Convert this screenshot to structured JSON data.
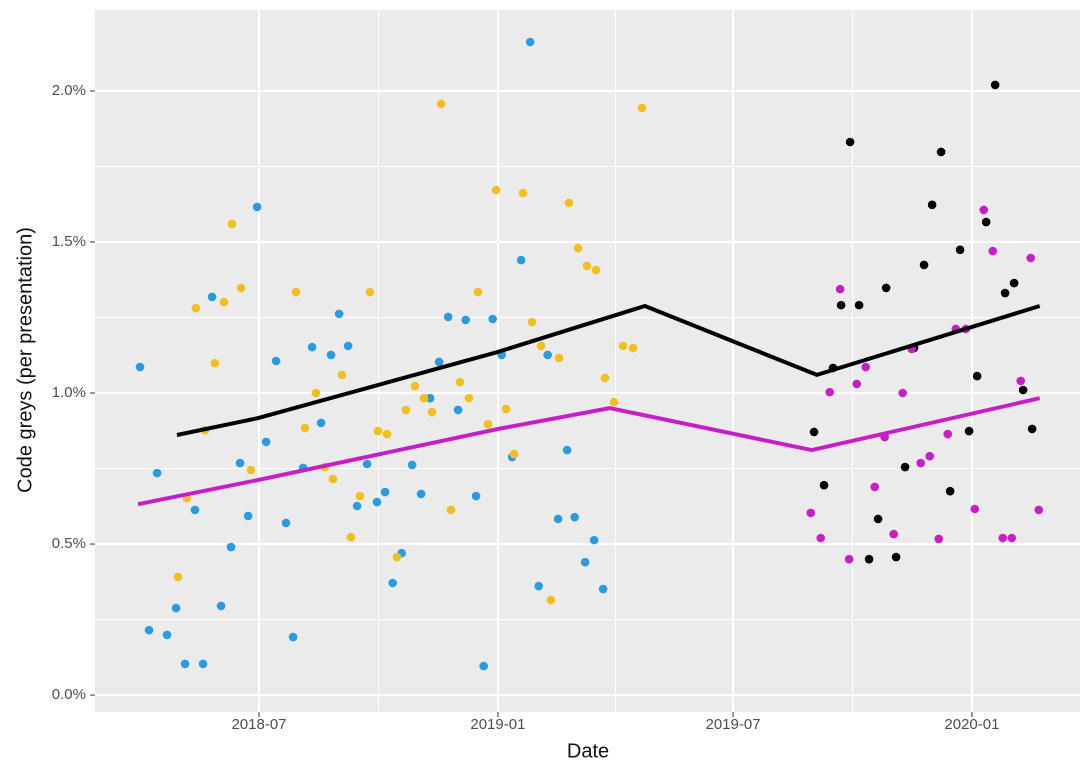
{
  "chart_data": {
    "type": "scatter",
    "xlabel": "Date",
    "ylabel": "Code greys (per presentation)",
    "xlim": [
      2018.15,
      2020.228
    ],
    "ylim": [
      -0.056,
      2.268
    ],
    "xticks": [
      {
        "value": 2018.496,
        "label": "2018-07"
      },
      {
        "value": 2019.0,
        "label": "2019-01"
      },
      {
        "value": 2019.496,
        "label": "2019-07"
      },
      {
        "value": 2020.0,
        "label": "2020-01"
      }
    ],
    "yticks": [
      {
        "value": 0,
        "label": "0.0%"
      },
      {
        "value": 0.5,
        "label": "0.5%"
      },
      {
        "value": 1,
        "label": "1.0%"
      },
      {
        "value": 1.5,
        "label": "1.5%"
      },
      {
        "value": 2,
        "label": "2.0%"
      }
    ],
    "grid": true,
    "series": [
      {
        "type": "scatter",
        "color": "#2b9be0",
        "x": [
          2018.245,
          2018.264,
          2018.281,
          2018.302,
          2018.321,
          2018.34,
          2018.361,
          2018.378,
          2018.397,
          2018.416,
          2018.437,
          2018.456,
          2018.473,
          2018.492,
          2018.511,
          2018.532,
          2018.553,
          2018.568,
          2018.589,
          2018.608,
          2018.627,
          2018.648,
          2018.665,
          2018.684,
          2018.703,
          2018.724,
          2018.745,
          2018.762,
          2018.778,
          2018.797,
          2018.819,
          2018.838,
          2018.857,
          2018.876,
          2018.895,
          2018.916,
          2018.932,
          2018.954,
          2018.97,
          2018.989,
          2019.008,
          2019.03,
          2019.049,
          2019.068,
          2019.086,
          2019.105,
          2019.127,
          2019.146,
          2019.162,
          2019.184,
          2019.203,
          2019.222
        ],
        "values": [
          1.086,
          0.215,
          0.735,
          0.199,
          0.288,
          0.103,
          0.613,
          0.103,
          1.318,
          0.295,
          0.49,
          0.768,
          0.593,
          1.616,
          0.838,
          1.106,
          0.57,
          0.192,
          0.752,
          1.152,
          0.901,
          1.126,
          1.262,
          1.156,
          0.626,
          0.765,
          0.639,
          0.672,
          0.371,
          0.47,
          0.762,
          0.666,
          0.983,
          1.103,
          1.252,
          0.944,
          1.242,
          0.659,
          0.096,
          1.245,
          1.126,
          0.788,
          1.44,
          2.162,
          0.361,
          1.126,
          0.583,
          0.811,
          0.589,
          0.44,
          0.513,
          0.351
        ]
      },
      {
        "type": "scatter",
        "color": "#f2c01e",
        "x": [
          2018.325,
          2018.344,
          2018.363,
          2018.382,
          2018.403,
          2018.422,
          2018.439,
          2018.458,
          2018.479,
          2018.574,
          2018.593,
          2018.616,
          2018.635,
          2018.652,
          2018.671,
          2018.69,
          2018.709,
          2018.73,
          2018.747,
          2018.766,
          2018.787,
          2018.806,
          2018.825,
          2018.844,
          2018.861,
          2018.88,
          2018.901,
          2018.92,
          2018.939,
          2018.958,
          2018.979,
          2018.996,
          2019.017,
          2019.034,
          2019.053,
          2019.072,
          2019.091,
          2019.112,
          2019.129,
          2019.15,
          2019.169,
          2019.188,
          2019.207,
          2019.226,
          2019.245,
          2019.264,
          2019.285,
          2019.304
        ],
        "values": [
          0.391,
          0.652,
          1.281,
          0.877,
          1.099,
          1.301,
          1.56,
          1.348,
          0.745,
          1.334,
          0.884,
          1.0,
          0.755,
          0.715,
          1.06,
          0.523,
          0.659,
          1.334,
          0.874,
          0.864,
          0.457,
          0.944,
          1.023,
          0.983,
          0.937,
          1.957,
          0.613,
          1.036,
          0.983,
          1.334,
          0.897,
          1.672,
          0.947,
          0.798,
          1.662,
          1.235,
          1.156,
          0.315,
          1.116,
          1.629,
          1.48,
          1.421,
          1.407,
          1.05,
          0.97,
          1.156,
          1.149,
          1.944
        ]
      },
      {
        "type": "scatter",
        "color": "#000000",
        "x": [
          2019.667,
          2019.688,
          2019.707,
          2019.724,
          2019.743,
          2019.762,
          2019.783,
          2019.802,
          2019.819,
          2019.84,
          2019.859,
          2019.878,
          2019.899,
          2019.916,
          2019.935,
          2019.954,
          2019.975,
          2019.994,
          2020.011,
          2020.03,
          2020.049,
          2020.07,
          2020.089,
          2020.108,
          2020.127
        ],
        "values": [
          0.871,
          0.695,
          1.083,
          1.291,
          1.831,
          1.291,
          0.45,
          0.583,
          1.348,
          0.457,
          0.755,
          1.149,
          1.424,
          1.623,
          1.798,
          0.675,
          1.474,
          0.874,
          1.056,
          1.566,
          2.02,
          1.331,
          1.364,
          1.01,
          0.881
        ]
      },
      {
        "type": "scatter",
        "color": "#c61fc6",
        "x": [
          2019.66,
          2019.681,
          2019.7,
          2019.722,
          2019.741,
          2019.757,
          2019.776,
          2019.795,
          2019.816,
          2019.835,
          2019.854,
          2019.873,
          2019.892,
          2019.911,
          2019.93,
          2019.949,
          2019.966,
          2019.987,
          2020.006,
          2020.025,
          2020.044,
          2020.065,
          2020.084,
          2020.103,
          2020.124,
          2020.141
        ],
        "values": [
          0.603,
          0.52,
          1.003,
          1.344,
          0.45,
          1.03,
          1.086,
          0.689,
          0.854,
          0.533,
          1.0,
          1.146,
          0.768,
          0.791,
          0.517,
          0.864,
          1.212,
          1.212,
          0.616,
          1.606,
          1.47,
          0.52,
          0.52,
          1.04,
          1.447,
          0.613
        ]
      },
      {
        "type": "line",
        "color": "#000000",
        "x": [
          2018.323,
          2018.494,
          2019.0,
          2019.31,
          2019.673,
          2020.143
        ],
        "values": [
          0.861,
          0.917,
          1.136,
          1.288,
          1.06,
          1.288
        ]
      },
      {
        "type": "line",
        "color": "#c61fc6",
        "x": [
          2018.241,
          2018.494,
          2019.0,
          2019.236,
          2019.662,
          2020.143
        ],
        "values": [
          0.632,
          0.712,
          0.881,
          0.95,
          0.811,
          0.983
        ]
      }
    ]
  }
}
